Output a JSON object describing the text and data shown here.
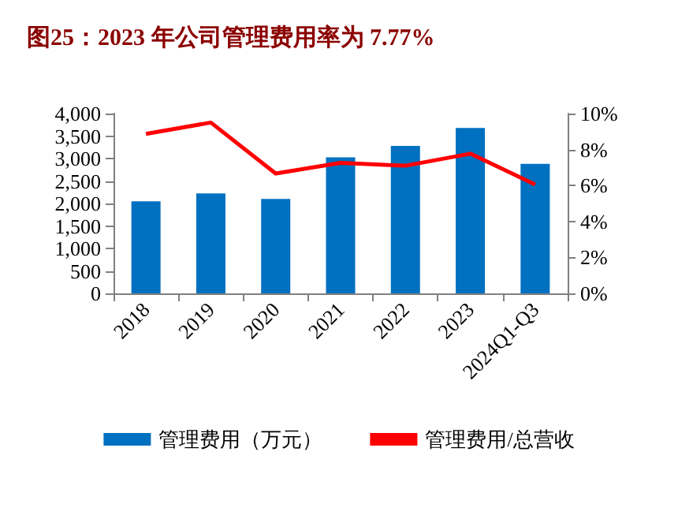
{
  "chart_data": {
    "type": "bar",
    "title": "图25：2023 年公司管理费用率为 7.77%",
    "categories": [
      "2018",
      "2019",
      "2020",
      "2021",
      "2022",
      "2023",
      "2024Q1-Q3"
    ],
    "series": [
      {
        "name": "管理费用（万元）",
        "color": "#0070c0",
        "values": [
          2050,
          2225,
          2100,
          3025,
          3280,
          3680,
          2880
        ]
      },
      {
        "name": "管理费用/总营收",
        "type": "line",
        "axis": "y2",
        "color": "#ff0000",
        "values": [
          8.87,
          9.5,
          6.67,
          7.26,
          7.1,
          7.77,
          6.05
        ]
      }
    ],
    "ylim": [
      0,
      4000
    ],
    "yticks": [
      {
        "value": 0,
        "label": "0"
      },
      {
        "value": 500,
        "label": "500"
      },
      {
        "value": 1000,
        "label": "1,000"
      },
      {
        "value": 1500,
        "label": "1,500"
      },
      {
        "value": 2000,
        "label": "2,000"
      },
      {
        "value": 2500,
        "label": "2,500"
      },
      {
        "value": 3000,
        "label": "3,000"
      },
      {
        "value": 3500,
        "label": "3,500"
      },
      {
        "value": 4000,
        "label": "4,000"
      }
    ],
    "y2lim": [
      0,
      10
    ],
    "y2ticks": [
      {
        "value": 0,
        "label": "0%"
      },
      {
        "value": 2,
        "label": "2%"
      },
      {
        "value": 4,
        "label": "4%"
      },
      {
        "value": 6,
        "label": "6%"
      },
      {
        "value": 8,
        "label": "8%"
      },
      {
        "value": 10,
        "label": "10%"
      }
    ],
    "grid": false,
    "legend": "bottom",
    "marker": "none"
  }
}
